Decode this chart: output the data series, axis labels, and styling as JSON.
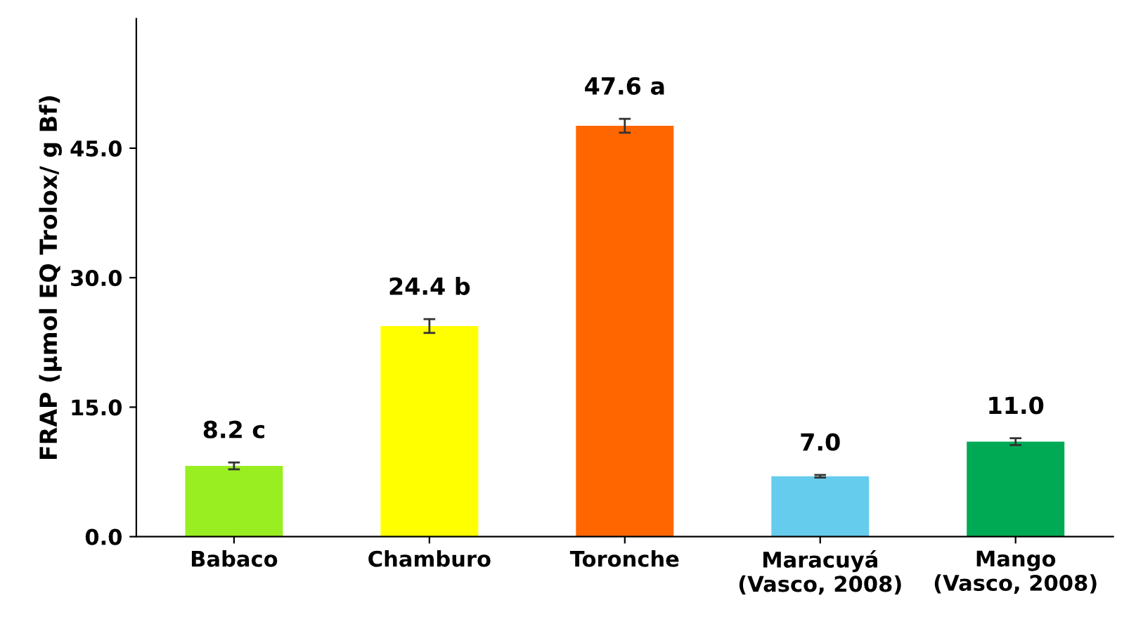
{
  "chart_data": {
    "type": "bar",
    "ylabel": "FRAP (µmol EQ Trolox/ g Bf)",
    "categories": [
      "Babaco",
      "Chamburo",
      "Toronche",
      "Maracuyá\n(Vasco, 2008)",
      "Mango\n(Vasco, 2008)"
    ],
    "values": [
      8.2,
      24.4,
      47.6,
      7.0,
      11.0
    ],
    "errors": [
      0.4,
      0.8,
      0.8,
      0.15,
      0.4
    ],
    "value_labels": [
      "8.2 c",
      "24.4 b",
      "47.6 a",
      "7.0",
      "11.0"
    ],
    "colors": [
      "#99ee22",
      "#ffff00",
      "#ff6600",
      "#66ccee",
      "#00aa55"
    ],
    "ylim": [
      0,
      60
    ],
    "yticks": [
      {
        "value": 0,
        "label": "0.0"
      },
      {
        "value": 15,
        "label": "15.0"
      },
      {
        "value": 30,
        "label": "30.0"
      },
      {
        "value": 45,
        "label": "45.0"
      }
    ],
    "grid": false,
    "legend": false
  }
}
